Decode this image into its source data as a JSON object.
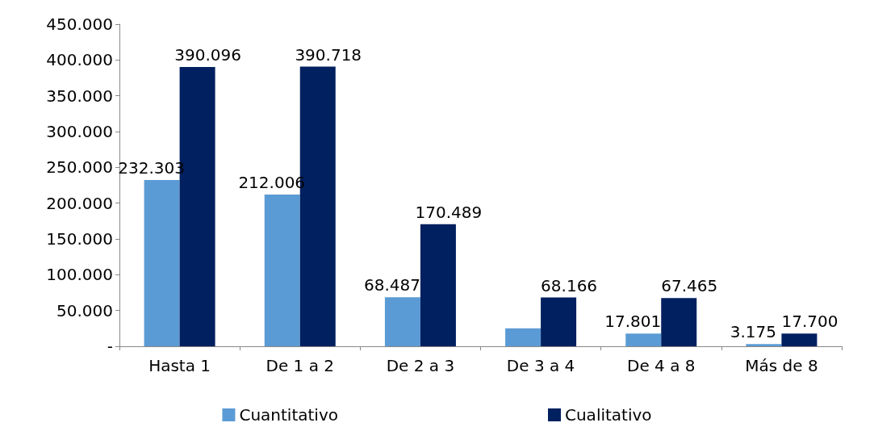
{
  "chart_data": {
    "type": "bar",
    "categories": [
      "Hasta 1",
      "De 1 a 2",
      "De 2 a 3",
      "De 3 a 4",
      "De 4 a 8",
      "Más de 8"
    ],
    "series": [
      {
        "name": "Cuantitativo",
        "color": "#5b9bd5",
        "values": [
          232303,
          212006,
          68487,
          25000,
          17801,
          3175
        ],
        "value_labels": [
          "232.303",
          "212.006",
          "68.487",
          null,
          "17.801",
          "3.175"
        ]
      },
      {
        "name": "Cualitativo",
        "color": "#002060",
        "values": [
          390096,
          390718,
          170489,
          68166,
          67465,
          17700
        ],
        "value_labels": [
          "390.096",
          "390.718",
          "170.489",
          "68.166",
          "67.465",
          "17.700"
        ]
      }
    ],
    "ylim": [
      0,
      450000
    ],
    "yticks": [
      {
        "value": 0,
        "label": "-"
      },
      {
        "value": 50000,
        "label": "50.000"
      },
      {
        "value": 100000,
        "label": "100.000"
      },
      {
        "value": 150000,
        "label": "150.000"
      },
      {
        "value": 200000,
        "label": "200.000"
      },
      {
        "value": 250000,
        "label": "250.000"
      },
      {
        "value": 300000,
        "label": "300.000"
      },
      {
        "value": 350000,
        "label": "350.000"
      },
      {
        "value": 400000,
        "label": "400.000"
      },
      {
        "value": 450000,
        "label": "450.000"
      }
    ],
    "grid": false,
    "legend": "bottom"
  }
}
